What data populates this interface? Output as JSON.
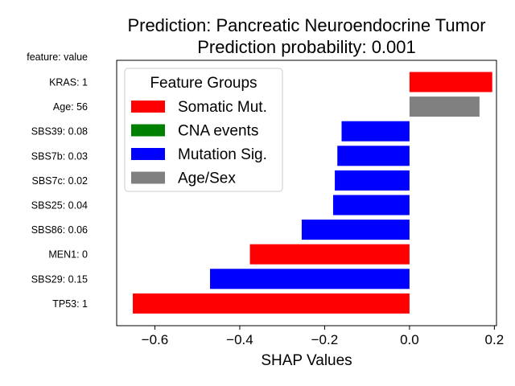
{
  "chart_data": {
    "type": "bar",
    "orientation": "horizontal",
    "title": "Prediction: Pancreatic Neuroendocrine Tumor",
    "subtitle": "Prediction probability: 0.001",
    "ylabel_header": "feature: value",
    "xlabel": "SHAP Values",
    "xlim": [
      -0.69,
      0.205
    ],
    "xticks": [
      -0.6,
      -0.4,
      -0.2,
      0.0,
      0.2
    ],
    "xtick_labels": [
      "−0.6",
      "−0.4",
      "−0.2",
      "0.0",
      "0.2"
    ],
    "categories": [
      "KRAS: 1",
      "Age: 56",
      "SBS39: 0.08",
      "SBS7b: 0.03",
      "SBS7c: 0.02",
      "SBS25: 0.04",
      "SBS86: 0.06",
      "MEN1: 0",
      "SBS29: 0.15",
      "TP53: 1"
    ],
    "values": [
      0.195,
      0.165,
      -0.16,
      -0.17,
      -0.176,
      -0.18,
      -0.254,
      -0.376,
      -0.47,
      -0.652
    ],
    "groups": [
      "Somatic Mut.",
      "Age/Sex",
      "Mutation Sig.",
      "Mutation Sig.",
      "Mutation Sig.",
      "Mutation Sig.",
      "Mutation Sig.",
      "Somatic Mut.",
      "Mutation Sig.",
      "Somatic Mut."
    ],
    "legend": {
      "title": "Feature Groups",
      "placement": "upper-left",
      "entries": [
        {
          "name": "Somatic Mut.",
          "color": "#ff0000"
        },
        {
          "name": "CNA events",
          "color": "#008000"
        },
        {
          "name": "Mutation Sig.",
          "color": "#0000ff"
        },
        {
          "name": "Age/Sex",
          "color": "#808080"
        }
      ]
    },
    "grid": false
  }
}
